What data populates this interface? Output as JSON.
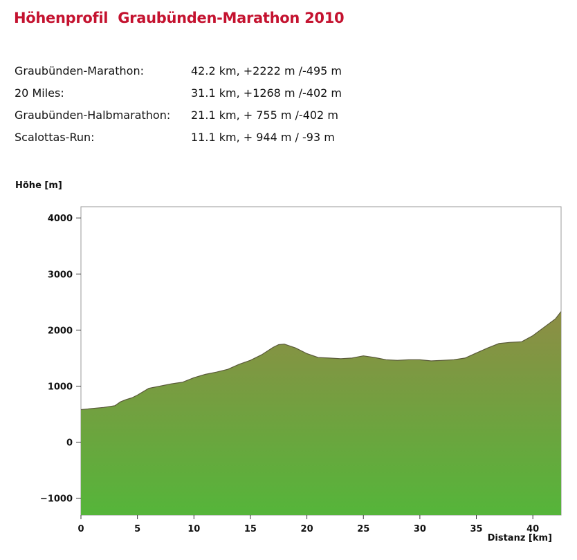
{
  "header": {
    "title": "Höhenprofil  Graubünden-Marathon 2010"
  },
  "stats": [
    {
      "name": "Graubünden-Marathon:",
      "value": "42.2 km, +2222 m /-495 m"
    },
    {
      "name": "20 Miles:",
      "value": "31.1 km, +1268 m /-402 m"
    },
    {
      "name": "Graubünden-Halbmarathon:",
      "value": "21.1 km, + 755 m /-402 m"
    },
    {
      "name": "Scalottas-Run:",
      "value": "11.1 km, + 944 m / -93 m"
    }
  ],
  "chart_data": {
    "type": "area",
    "title": "",
    "xlabel": "Distanz [km]",
    "ylabel": "Höhe [m]",
    "xlim": [
      0,
      42.5
    ],
    "ylim": [
      -1300,
      4200
    ],
    "xticks": [
      0,
      5,
      10,
      15,
      20,
      25,
      30,
      35,
      40
    ],
    "yticks": [
      -1000,
      0,
      1000,
      2000,
      3000,
      4000
    ],
    "ytick_labels": [
      "−1000",
      "0",
      "1000",
      "2000",
      "3000",
      "4000"
    ],
    "grid": false,
    "fill_colors": {
      "top": "#8d8d45",
      "bottom": "#55b53a"
    },
    "series": [
      {
        "x": [
          0,
          1,
          2,
          3,
          3.5,
          4,
          4.5,
          5,
          6,
          7,
          8,
          9,
          10,
          11,
          12,
          13,
          14,
          15,
          16,
          17,
          17.5,
          18,
          19,
          20,
          21,
          22,
          23,
          24,
          25,
          26,
          27,
          28,
          29,
          30,
          31,
          32,
          33,
          34,
          35,
          36,
          37,
          38,
          39,
          40,
          41,
          42,
          42.5
        ],
        "y": [
          580,
          600,
          620,
          650,
          720,
          760,
          790,
          840,
          960,
          1000,
          1040,
          1070,
          1150,
          1210,
          1250,
          1300,
          1390,
          1460,
          1560,
          1690,
          1740,
          1750,
          1680,
          1580,
          1510,
          1500,
          1490,
          1500,
          1540,
          1510,
          1470,
          1460,
          1470,
          1470,
          1450,
          1460,
          1470,
          1500,
          1590,
          1680,
          1760,
          1780,
          1790,
          1900,
          2050,
          2200,
          2330
        ]
      }
    ]
  }
}
